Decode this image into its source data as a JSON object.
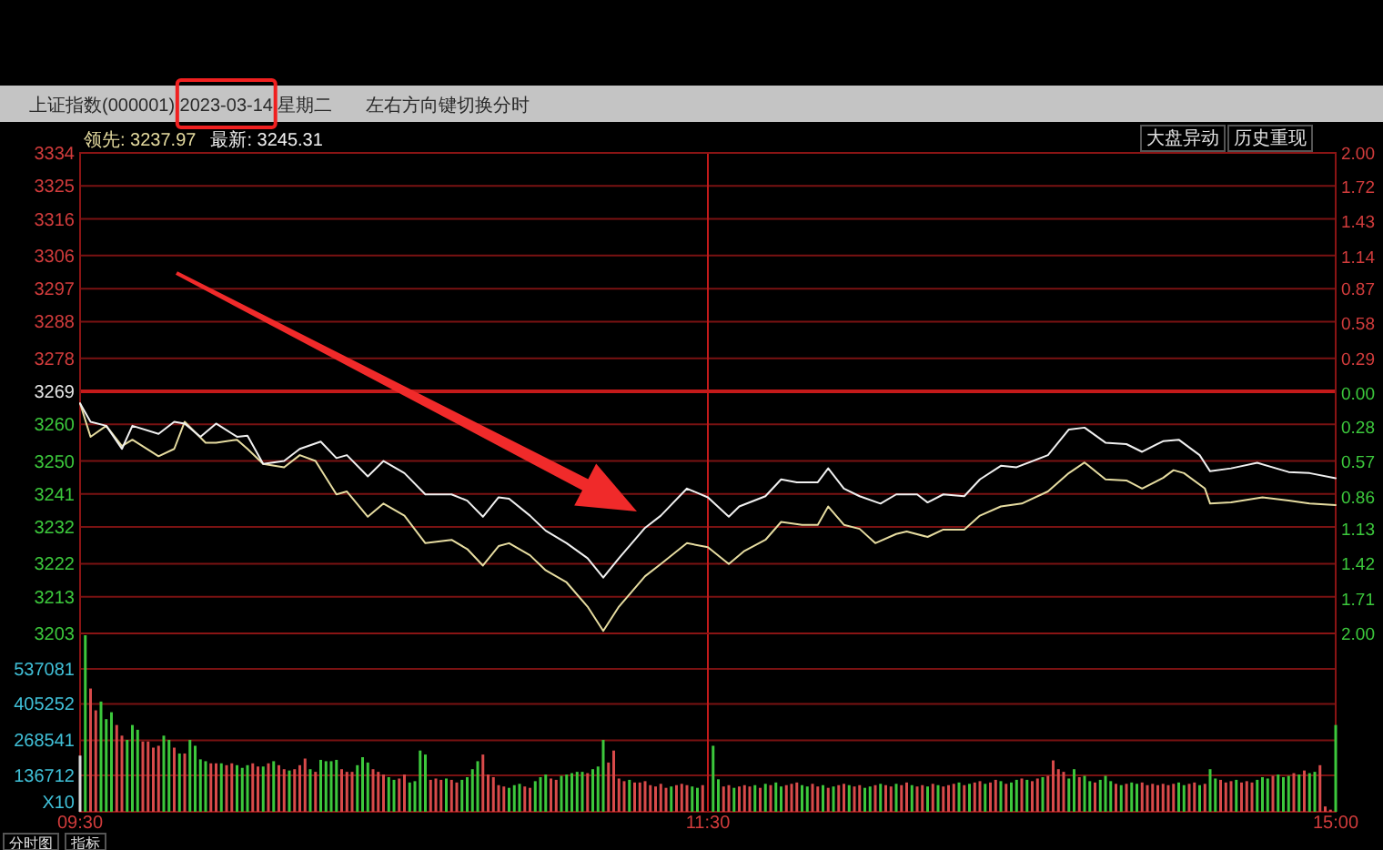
{
  "chart_data": [
    {
      "type": "line",
      "title": "上证指数(000001) 2023-03-14 星期二",
      "annotations": [
        "左右方向键切换分时",
        "大盘异动",
        "历史重现"
      ],
      "categories": [
        "09:30",
        null,
        null,
        null,
        null,
        null,
        null,
        null,
        null,
        null,
        null,
        null,
        null,
        null,
        null,
        null,
        null,
        null,
        null,
        null,
        null,
        null,
        null,
        null,
        null,
        null,
        null,
        null,
        null,
        null,
        null,
        null,
        null,
        null,
        null,
        null,
        null,
        null,
        null,
        null,
        null,
        null,
        null,
        null,
        null,
        null,
        null,
        null,
        null,
        null,
        null,
        null,
        null,
        null,
        null,
        null,
        null,
        null,
        null,
        null,
        null,
        null,
        null,
        null,
        null,
        null,
        null,
        null,
        null,
        null,
        null,
        null,
        null,
        null,
        null,
        null,
        null,
        null,
        null,
        null,
        null,
        null,
        null,
        null,
        null,
        null,
        null,
        null,
        null,
        null,
        null,
        null,
        null,
        null,
        null,
        null,
        null,
        null,
        null,
        null,
        null,
        null,
        null,
        null,
        null,
        null,
        null,
        null,
        null,
        null,
        null,
        null,
        null,
        null,
        null,
        null,
        null,
        null,
        null,
        null,
        "11:30",
        null,
        null,
        null,
        null,
        null,
        null,
        null,
        null,
        null,
        null,
        null,
        null,
        null,
        null,
        null,
        null,
        null,
        null,
        null,
        null,
        null,
        null,
        null,
        null,
        null,
        null,
        null,
        null,
        null,
        null,
        null,
        null,
        null,
        null,
        null,
        null,
        null,
        null,
        null,
        null,
        null,
        null,
        null,
        null,
        null,
        null,
        null,
        null,
        null,
        null,
        null,
        null,
        null,
        null,
        null,
        null,
        null,
        null,
        null,
        null,
        null,
        null,
        null,
        null,
        null,
        null,
        null,
        null,
        null,
        null,
        null,
        null,
        null,
        null,
        null,
        null,
        null,
        null,
        null,
        null,
        null,
        null,
        null,
        null,
        null,
        null,
        null,
        null,
        null,
        null,
        null,
        null,
        null,
        null,
        null,
        null,
        null,
        null,
        null,
        null,
        null,
        null,
        null,
        null,
        null,
        null,
        null,
        null,
        null,
        null,
        null,
        null,
        null,
        null,
        null,
        null,
        null,
        null,
        null,
        "15:00"
      ],
      "ylim": [
        3203,
        3334
      ],
      "yticks": [
        3334,
        3325,
        3316,
        3306,
        3297,
        3288,
        3278,
        3269,
        3260,
        3250,
        3241,
        3232,
        3222,
        3213,
        3203
      ],
      "y2lim": [
        -2,
        2
      ],
      "y2ticks": [
        {
          "value": 2,
          "label": "2.00"
        },
        1.72,
        1.43,
        1.14,
        0.87,
        0.58,
        0.29,
        {
          "value": 0,
          "label": "0.00"
        },
        {
          "value": -0.28,
          "label": "0.28"
        },
        {
          "value": -0.57,
          "label": "0.57"
        },
        {
          "value": -0.86,
          "label": "0.86"
        },
        {
          "value": -1.13,
          "label": "1.13"
        },
        {
          "value": -1.42,
          "label": "1.42"
        },
        {
          "value": -1.71,
          "label": "1.71"
        },
        {
          "value": -2,
          "label": "2.00"
        }
      ],
      "ref_lines": [
        {
          "axis": "y",
          "value": 3269,
          "color": "#c41a1a"
        },
        {
          "axis": "x",
          "value": "11:30",
          "color": "#c41a1a"
        }
      ],
      "grid": "y",
      "tick_labels": "y",
      "legend": "top left",
      "series": [
        {
          "name": "领先: 3237.97",
          "color": "#e6dca0",
          "values": [
            3265.7,
            null,
            3256.6,
            null,
            null,
            3259.6,
            null,
            null,
            3254.1,
            null,
            3255.8,
            null,
            null,
            null,
            null,
            3251.3,
            null,
            null,
            3253.3,
            null,
            3260.7,
            null,
            null,
            null,
            3255.0,
            null,
            3255.0,
            null,
            null,
            null,
            3255.8,
            null,
            3253.3,
            null,
            null,
            3249.2,
            null,
            null,
            null,
            3248.3,
            null,
            null,
            3251.6,
            null,
            null,
            3250.0,
            null,
            null,
            null,
            3240.9,
            null,
            3241.7,
            null,
            null,
            null,
            3234.8,
            null,
            null,
            3238.4,
            null,
            null,
            null,
            3235.1,
            null,
            null,
            null,
            3227.6,
            null,
            null,
            null,
            null,
            3228.5,
            null,
            null,
            3226.0,
            null,
            null,
            3221.5,
            null,
            null,
            3226.8,
            null,
            3227.6,
            null,
            null,
            null,
            3224.3,
            null,
            null,
            3220.2,
            null,
            null,
            null,
            3216.9,
            null,
            null,
            null,
            3210.3,
            null,
            null,
            3203.7,
            null,
            null,
            3210.3,
            null,
            null,
            null,
            null,
            3218.6,
            null,
            null,
            3221.9,
            null,
            null,
            null,
            null,
            3227.6,
            null,
            null,
            null,
            3226.5,
            null,
            null,
            null,
            3221.9,
            null,
            null,
            3225.5,
            null,
            null,
            null,
            3228.5,
            null,
            null,
            3233.4,
            null,
            null,
            null,
            3232.6,
            null,
            null,
            3232.6,
            null,
            3237.6,
            null,
            null,
            3232.6,
            null,
            null,
            3231.5,
            null,
            null,
            3227.6,
            null,
            null,
            null,
            3230.1,
            null,
            3230.8,
            null,
            null,
            null,
            3229.3,
            null,
            null,
            3231.3,
            null,
            null,
            null,
            3231.3,
            null,
            null,
            3235.1,
            null,
            null,
            null,
            3237.6,
            null,
            null,
            null,
            3238.4,
            null,
            null,
            null,
            null,
            3241.7,
            null,
            null,
            null,
            3246.7,
            null,
            null,
            3249.6,
            null,
            null,
            null,
            3245.0,
            null,
            null,
            null,
            3244.7,
            null,
            null,
            3242.5,
            null,
            null,
            null,
            3245.4,
            null,
            3247.5,
            null,
            3246.7,
            null,
            null,
            null,
            3242.5,
            3238.4,
            null,
            null,
            null,
            3238.7,
            null,
            null,
            null,
            null,
            null,
            3240.1,
            null,
            null,
            null,
            null,
            3239.2,
            null,
            null,
            null,
            3238.4,
            null,
            null,
            null,
            null,
            3238.0
          ]
        },
        {
          "name": "最新: 3245.31",
          "color": "#f0f0f0",
          "values": [
            3265.7,
            null,
            3260.7,
            null,
            null,
            3259.6,
            null,
            null,
            3253.3,
            null,
            3259.6,
            null,
            null,
            null,
            null,
            3257.4,
            null,
            null,
            3260.7,
            null,
            3260.2,
            null,
            null,
            3256.6,
            null,
            null,
            3260.2,
            null,
            null,
            null,
            3256.6,
            null,
            3256.9,
            null,
            null,
            3249.2,
            null,
            null,
            null,
            3250.0,
            null,
            null,
            3253.3,
            null,
            null,
            null,
            3255.3,
            null,
            null,
            3250.8,
            null,
            3251.6,
            null,
            null,
            null,
            3245.8,
            null,
            null,
            3250.0,
            null,
            null,
            null,
            3246.7,
            null,
            null,
            null,
            3240.9,
            null,
            null,
            null,
            null,
            3240.9,
            null,
            null,
            3239.2,
            null,
            null,
            3234.8,
            null,
            null,
            3240.1,
            null,
            3239.7,
            null,
            null,
            null,
            3235.1,
            null,
            null,
            3231.0,
            null,
            null,
            null,
            3227.6,
            null,
            null,
            null,
            3223.5,
            null,
            null,
            3218.2,
            null,
            null,
            3223.5,
            null,
            null,
            null,
            null,
            3231.8,
            null,
            null,
            3235.1,
            null,
            null,
            null,
            null,
            3242.5,
            null,
            null,
            null,
            3240.1,
            null,
            null,
            null,
            3234.8,
            null,
            3237.6,
            null,
            null,
            null,
            null,
            3240.4,
            null,
            null,
            3245.0,
            null,
            null,
            3244.2,
            null,
            null,
            null,
            3244.2,
            null,
            3248.0,
            null,
            null,
            3242.5,
            null,
            null,
            3240.4,
            null,
            null,
            null,
            3238.4,
            null,
            null,
            3240.9,
            null,
            null,
            null,
            3240.9,
            null,
            3238.7,
            null,
            null,
            3240.9,
            null,
            null,
            null,
            3240.4,
            null,
            null,
            3245.0,
            null,
            null,
            null,
            3248.7,
            null,
            null,
            3248.3,
            null,
            null,
            null,
            null,
            null,
            3251.6,
            null,
            null,
            null,
            3258.6,
            null,
            null,
            3259.1,
            null,
            null,
            null,
            3255.0,
            null,
            null,
            null,
            3254.6,
            null,
            null,
            3252.5,
            null,
            null,
            null,
            3255.4,
            null,
            null,
            3255.8,
            null,
            null,
            null,
            3251.6,
            null,
            3247.2,
            null,
            null,
            null,
            3248.0,
            null,
            null,
            null,
            null,
            3249.5,
            null,
            null,
            null,
            null,
            null,
            3247.0,
            null,
            null,
            null,
            3246.7,
            null,
            null,
            null,
            null,
            3245.3
          ]
        }
      ]
    },
    {
      "type": "bar",
      "ylabel": "X10",
      "annotations": [
        "分时图",
        "指标"
      ],
      "ylim": [
        0,
        670000
      ],
      "yticks": [
        136712,
        268541,
        405252,
        537081
      ],
      "categories": [
        "09:30",
        null,
        null,
        null,
        null,
        null,
        null,
        null,
        null,
        null,
        null,
        null,
        null,
        null,
        null,
        null,
        null,
        null,
        null,
        null,
        null,
        null,
        null,
        null,
        null,
        null,
        null,
        null,
        null,
        null,
        null,
        null,
        null,
        null,
        null,
        null,
        null,
        null,
        null,
        null,
        null,
        null,
        null,
        null,
        null,
        null,
        null,
        null,
        null,
        null,
        null,
        null,
        null,
        null,
        null,
        null,
        null,
        null,
        null,
        null,
        null,
        null,
        null,
        null,
        null,
        null,
        null,
        null,
        null,
        null,
        null,
        null,
        null,
        null,
        null,
        null,
        null,
        null,
        null,
        null,
        null,
        null,
        null,
        null,
        null,
        null,
        null,
        null,
        null,
        null,
        null,
        null,
        null,
        null,
        null,
        null,
        null,
        null,
        null,
        null,
        null,
        null,
        null,
        null,
        null,
        null,
        null,
        null,
        null,
        null,
        null,
        null,
        null,
        null,
        null,
        null,
        null,
        null,
        null,
        null,
        "11:30",
        null,
        null,
        null,
        null,
        null,
        null,
        null,
        null,
        null,
        null,
        null,
        null,
        null,
        null,
        null,
        null,
        null,
        null,
        null,
        null,
        null,
        null,
        null,
        null,
        null,
        null,
        null,
        null,
        null,
        null,
        null,
        null,
        null,
        null,
        null,
        null,
        null,
        null,
        null,
        null,
        null,
        null,
        null,
        null,
        null,
        null,
        null,
        null,
        null,
        null,
        null,
        null,
        null,
        null,
        null,
        null,
        null,
        null,
        null,
        null,
        null,
        null,
        null,
        null,
        null,
        null,
        null,
        null,
        null,
        null,
        null,
        null,
        null,
        null,
        null,
        null,
        null,
        null,
        null,
        null,
        null,
        null,
        null,
        null,
        null,
        null,
        null,
        null,
        null,
        null,
        null,
        null,
        null,
        null,
        null,
        null,
        null,
        null,
        null,
        null,
        null,
        null,
        null,
        null,
        null,
        null,
        null,
        null,
        null,
        null,
        null,
        null,
        null,
        null,
        null,
        null,
        null,
        null,
        null,
        "15:00"
      ],
      "ref_lines": [
        {
          "axis": "x",
          "value": "11:30",
          "color": "#c41a1a"
        }
      ],
      "grid": "y",
      "values": [
        211000,
        663000,
        463000,
        381000,
        414000,
        348000,
        374000,
        326000,
        286000,
        270000,
        326000,
        308000,
        264000,
        264000,
        241000,
        248000,
        286000,
        270000,
        241000,
        219000,
        219000,
        270000,
        248000,
        197000,
        190000,
        182000,
        182000,
        182000,
        175000,
        182000,
        175000,
        165000,
        175000,
        182000,
        170000,
        170000,
        182000,
        190000,
        175000,
        160000,
        155000,
        160000,
        175000,
        200000,
        160000,
        150000,
        195000,
        190000,
        190000,
        195000,
        160000,
        150000,
        150000,
        175000,
        205000,
        185000,
        160000,
        150000,
        140000,
        130000,
        120000,
        125000,
        140000,
        110000,
        115000,
        230000,
        215000,
        120000,
        125000,
        120000,
        125000,
        120000,
        110000,
        120000,
        130000,
        160000,
        190000,
        215000,
        140000,
        130000,
        100000,
        95000,
        90000,
        100000,
        105000,
        95000,
        90000,
        115000,
        130000,
        140000,
        125000,
        120000,
        135000,
        140000,
        145000,
        150000,
        150000,
        145000,
        160000,
        170000,
        270000,
        185000,
        230000,
        125000,
        115000,
        120000,
        110000,
        110000,
        115000,
        100000,
        95000,
        105000,
        90000,
        95000,
        100000,
        105000,
        100000,
        95000,
        90000,
        100000,
        null,
        248000,
        122000,
        95000,
        100000,
        90000,
        95000,
        100000,
        95000,
        100000,
        90000,
        105000,
        100000,
        110000,
        95000,
        100000,
        105000,
        110000,
        100000,
        95000,
        105000,
        95000,
        100000,
        90000,
        95000,
        100000,
        105000,
        100000,
        95000,
        100000,
        90000,
        95000,
        100000,
        105000,
        100000,
        95000,
        105000,
        100000,
        110000,
        100000,
        95000,
        100000,
        95000,
        105000,
        100000,
        95000,
        100000,
        105000,
        110000,
        100000,
        105000,
        110000,
        115000,
        105000,
        110000,
        120000,
        115000,
        105000,
        110000,
        120000,
        125000,
        120000,
        115000,
        125000,
        130000,
        135000,
        193000,
        160000,
        150000,
        125000,
        160000,
        130000,
        135000,
        115000,
        110000,
        120000,
        135000,
        115000,
        105000,
        100000,
        105000,
        110000,
        105000,
        110000,
        100000,
        105000,
        100000,
        105000,
        100000,
        105000,
        110000,
        100000,
        105000,
        110000,
        100000,
        105000,
        160000,
        125000,
        120000,
        110000,
        115000,
        120000,
        110000,
        115000,
        110000,
        120000,
        130000,
        125000,
        135000,
        140000,
        130000,
        135000,
        145000,
        140000,
        155000,
        145000,
        150000,
        175000,
        20000,
        8000,
        326000
      ],
      "colors": [
        "#d8d8d8",
        "#3cc83c",
        "#d84a4a",
        "#d84a4a",
        "#3cc83c",
        "#3cc83c",
        "#3cc83c",
        "#d84a4a",
        "#d84a4a",
        "#3cc83c",
        "#3cc83c",
        "#3cc83c",
        "#d84a4a",
        "#d84a4a",
        "#d84a4a",
        "#d84a4a",
        "#3cc83c",
        "#3cc83c",
        "#d84a4a",
        "#3cc83c",
        "#d84a4a",
        "#3cc83c",
        "#3cc83c",
        "#3cc83c",
        "#3cc83c",
        "#d84a4a",
        "#d84a4a",
        "#3cc83c",
        "#d84a4a",
        "#d84a4a",
        "#3cc83c",
        "#3cc83c",
        "#3cc83c",
        "#d84a4a",
        "#d84a4a",
        "#3cc83c",
        "#d84a4a",
        "#3cc83c",
        "#d84a4a",
        "#d84a4a",
        "#3cc83c",
        "#d84a4a",
        "#d84a4a",
        "#d84a4a",
        "#3cc83c",
        "#d84a4a",
        "#3cc83c",
        "#3cc83c",
        "#3cc83c",
        "#3cc83c",
        "#d84a4a",
        "#d84a4a",
        "#d84a4a",
        "#3cc83c",
        "#3cc83c",
        "#3cc83c",
        "#d84a4a",
        "#d84a4a",
        "#d84a4a",
        "#3cc83c",
        "#3cc83c",
        "#d84a4a",
        "#d84a4a",
        "#3cc83c",
        "#3cc83c",
        "#3cc83c",
        "#3cc83c",
        "#d84a4a",
        "#d84a4a",
        "#d84a4a",
        "#3cc83c",
        "#d84a4a",
        "#d84a4a",
        "#3cc83c",
        "#3cc83c",
        "#3cc83c",
        "#3cc83c",
        "#d84a4a",
        "#d84a4a",
        "#d84a4a",
        "#d84a4a",
        "#d84a4a",
        "#3cc83c",
        "#3cc83c",
        "#3cc83c",
        "#d84a4a",
        "#d84a4a",
        "#3cc83c",
        "#3cc83c",
        "#3cc83c",
        "#d84a4a",
        "#d84a4a",
        "#3cc83c",
        "#3cc83c",
        "#3cc83c",
        "#3cc83c",
        "#3cc83c",
        "#d84a4a",
        "#3cc83c",
        "#3cc83c",
        "#3cc83c",
        "#d84a4a",
        "#d84a4a",
        "#d84a4a",
        "#d84a4a",
        "#3cc83c",
        "#d84a4a",
        "#d84a4a",
        "#d84a4a",
        "#d84a4a",
        "#d84a4a",
        "#d84a4a",
        "#d84a4a",
        "#3cc83c",
        "#d84a4a",
        "#d84a4a",
        "#d84a4a",
        "#3cc83c",
        "#3cc83c",
        "#d84a4a",
        null,
        "#3cc83c",
        "#3cc83c",
        "#d84a4a",
        "#d84a4a",
        "#3cc83c",
        "#d84a4a",
        "#d84a4a",
        "#d84a4a",
        "#3cc83c",
        "#d84a4a",
        "#3cc83c",
        "#d84a4a",
        "#3cc83c",
        "#3cc83c",
        "#d84a4a",
        "#d84a4a",
        "#d84a4a",
        "#3cc83c",
        "#3cc83c",
        "#d84a4a",
        "#d84a4a",
        "#3cc83c",
        "#d84a4a",
        "#3cc83c",
        "#d84a4a",
        "#d84a4a",
        "#3cc83c",
        "#d84a4a",
        "#d84a4a",
        "#3cc83c",
        "#3cc83c",
        "#d84a4a",
        "#3cc83c",
        "#d84a4a",
        "#d84a4a",
        "#3cc83c",
        "#d84a4a",
        "#d84a4a",
        "#3cc83c",
        "#d84a4a",
        "#d84a4a",
        "#3cc83c",
        "#d84a4a",
        "#3cc83c",
        "#d84a4a",
        "#d84a4a",
        "#d84a4a",
        "#3cc83c",
        "#d84a4a",
        "#3cc83c",
        "#d84a4a",
        "#d84a4a",
        "#3cc83c",
        "#d84a4a",
        "#d84a4a",
        "#3cc83c",
        "#d84a4a",
        "#3cc83c",
        "#3cc83c",
        "#d84a4a",
        "#3cc83c",
        "#d84a4a",
        "#d84a4a",
        "#3cc83c",
        "#d84a4a",
        "#d84a4a",
        "#d84a4a",
        "#d84a4a",
        "#3cc83c",
        "#3cc83c",
        "#d84a4a",
        "#3cc83c",
        "#3cc83c",
        "#d84a4a",
        "#3cc83c",
        "#3cc83c",
        "#3cc83c",
        "#d84a4a",
        "#3cc83c",
        "#d84a4a",
        "#3cc83c",
        "#3cc83c",
        "#d84a4a",
        "#d84a4a",
        "#d84a4a",
        "#d84a4a",
        "#d84a4a",
        "#d84a4a",
        "#d84a4a",
        "#3cc83c",
        "#3cc83c",
        "#d84a4a",
        "#d84a4a",
        "#3cc83c",
        "#d84a4a",
        "#3cc83c",
        "#3cc83c",
        "#d84a4a",
        "#d84a4a",
        "#d84a4a",
        "#3cc83c",
        "#d84a4a",
        "#d84a4a",
        "#d84a4a",
        "#3cc83c",
        "#3cc83c",
        "#3cc83c",
        "#d84a4a",
        "#3cc83c",
        "#3cc83c",
        "#3cc83c",
        "#d84a4a",
        "#3cc83c",
        "#d84a4a",
        "#3cc83c",
        "#3cc83c",
        "#d84a4a",
        "#d84a4a",
        "#d84a4a",
        "#3cc83c"
      ]
    }
  ]
}
